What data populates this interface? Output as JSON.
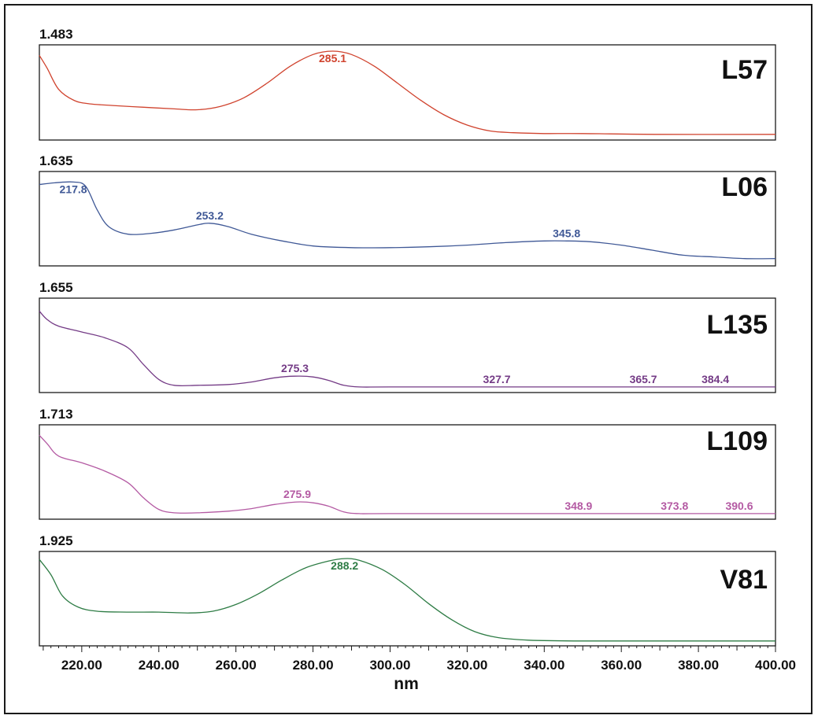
{
  "chart_data": {
    "type": "line",
    "xlabel": "nm",
    "xlim": [
      209,
      400
    ],
    "x_ticks": [
      "220.00",
      "240.00",
      "260.00",
      "280.00",
      "300.00",
      "320.00",
      "340.00",
      "360.00",
      "380.00",
      "400.00"
    ],
    "panels": [
      {
        "name": "L57",
        "ymax_label": "1.483",
        "color": "#d0432e",
        "peaks": [
          {
            "x": 285.1,
            "label": "285.1"
          }
        ],
        "points": [
          [
            209,
            0.95
          ],
          [
            211,
            0.8
          ],
          [
            214,
            0.55
          ],
          [
            218,
            0.42
          ],
          [
            222,
            0.38
          ],
          [
            228,
            0.36
          ],
          [
            236,
            0.34
          ],
          [
            244,
            0.32
          ],
          [
            250,
            0.31
          ],
          [
            256,
            0.35
          ],
          [
            262,
            0.45
          ],
          [
            268,
            0.62
          ],
          [
            274,
            0.82
          ],
          [
            280,
            0.96
          ],
          [
            285.1,
            1.0
          ],
          [
            290,
            0.96
          ],
          [
            296,
            0.82
          ],
          [
            302,
            0.62
          ],
          [
            308,
            0.42
          ],
          [
            314,
            0.25
          ],
          [
            320,
            0.13
          ],
          [
            326,
            0.06
          ],
          [
            332,
            0.04
          ],
          [
            340,
            0.03
          ],
          [
            350,
            0.03
          ],
          [
            370,
            0.02
          ],
          [
            400,
            0.02
          ]
        ]
      },
      {
        "name": "L06",
        "ymax_label": "1.635",
        "color": "#3f5896",
        "peaks": [
          {
            "x": 217.8,
            "label": "217.8"
          },
          {
            "x": 253.2,
            "label": "253.2"
          },
          {
            "x": 345.8,
            "label": "345.8"
          }
        ],
        "points": [
          [
            209,
            0.92
          ],
          [
            213,
            0.94
          ],
          [
            217.8,
            0.95
          ],
          [
            221,
            0.9
          ],
          [
            224,
            0.62
          ],
          [
            227,
            0.42
          ],
          [
            232,
            0.33
          ],
          [
            238,
            0.34
          ],
          [
            244,
            0.38
          ],
          [
            250,
            0.44
          ],
          [
            253.2,
            0.46
          ],
          [
            258,
            0.42
          ],
          [
            264,
            0.33
          ],
          [
            272,
            0.25
          ],
          [
            280,
            0.19
          ],
          [
            290,
            0.17
          ],
          [
            300,
            0.17
          ],
          [
            310,
            0.18
          ],
          [
            320,
            0.2
          ],
          [
            330,
            0.23
          ],
          [
            340,
            0.25
          ],
          [
            345.8,
            0.25
          ],
          [
            352,
            0.24
          ],
          [
            360,
            0.2
          ],
          [
            368,
            0.14
          ],
          [
            376,
            0.08
          ],
          [
            384,
            0.06
          ],
          [
            392,
            0.04
          ],
          [
            400,
            0.04
          ]
        ]
      },
      {
        "name": "L135",
        "ymax_label": "1.655",
        "color": "#743b86",
        "peaks": [
          {
            "x": 275.3,
            "label": "275.3"
          },
          {
            "x": 327.7,
            "label": "327.7"
          },
          {
            "x": 365.7,
            "label": "365.7"
          },
          {
            "x": 384.4,
            "label": "384.4"
          }
        ],
        "points": [
          [
            209,
            0.92
          ],
          [
            211,
            0.82
          ],
          [
            214,
            0.74
          ],
          [
            220,
            0.67
          ],
          [
            226,
            0.6
          ],
          [
            232,
            0.48
          ],
          [
            236,
            0.28
          ],
          [
            240,
            0.1
          ],
          [
            244,
            0.03
          ],
          [
            250,
            0.03
          ],
          [
            258,
            0.04
          ],
          [
            264,
            0.07
          ],
          [
            270,
            0.12
          ],
          [
            275.3,
            0.14
          ],
          [
            280,
            0.13
          ],
          [
            284,
            0.09
          ],
          [
            288,
            0.03
          ],
          [
            292,
            0.01
          ],
          [
            300,
            0.01
          ],
          [
            327.7,
            0.01
          ],
          [
            365.7,
            0.01
          ],
          [
            384.4,
            0.01
          ],
          [
            400,
            0.01
          ]
        ]
      },
      {
        "name": "L109",
        "ymax_label": "1.713",
        "color": "#b45aa3",
        "peaks": [
          {
            "x": 275.9,
            "label": "275.9"
          },
          {
            "x": 348.9,
            "label": "348.9"
          },
          {
            "x": 373.8,
            "label": "373.8"
          },
          {
            "x": 390.6,
            "label": "390.6"
          }
        ],
        "points": [
          [
            209,
            0.95
          ],
          [
            211,
            0.85
          ],
          [
            214,
            0.7
          ],
          [
            220,
            0.62
          ],
          [
            226,
            0.52
          ],
          [
            232,
            0.38
          ],
          [
            236,
            0.2
          ],
          [
            240,
            0.06
          ],
          [
            244,
            0.02
          ],
          [
            250,
            0.02
          ],
          [
            258,
            0.04
          ],
          [
            264,
            0.07
          ],
          [
            270,
            0.12
          ],
          [
            275.9,
            0.15
          ],
          [
            280,
            0.14
          ],
          [
            284,
            0.1
          ],
          [
            288,
            0.03
          ],
          [
            292,
            0.01
          ],
          [
            300,
            0.01
          ],
          [
            348.9,
            0.01
          ],
          [
            373.8,
            0.01
          ],
          [
            390.6,
            0.01
          ],
          [
            400,
            0.01
          ]
        ]
      },
      {
        "name": "V81",
        "ymax_label": "1.925",
        "color": "#2e7c45",
        "peaks": [
          {
            "x": 288.2,
            "label": "288.2"
          }
        ],
        "points": [
          [
            209,
            0.98
          ],
          [
            212,
            0.8
          ],
          [
            215,
            0.55
          ],
          [
            219,
            0.42
          ],
          [
            224,
            0.37
          ],
          [
            232,
            0.36
          ],
          [
            240,
            0.36
          ],
          [
            248,
            0.35
          ],
          [
            254,
            0.37
          ],
          [
            260,
            0.45
          ],
          [
            266,
            0.58
          ],
          [
            272,
            0.74
          ],
          [
            278,
            0.88
          ],
          [
            284,
            0.96
          ],
          [
            288.2,
            0.99
          ],
          [
            292,
            0.97
          ],
          [
            298,
            0.86
          ],
          [
            304,
            0.68
          ],
          [
            310,
            0.46
          ],
          [
            316,
            0.27
          ],
          [
            322,
            0.13
          ],
          [
            328,
            0.06
          ],
          [
            336,
            0.03
          ],
          [
            350,
            0.02
          ],
          [
            370,
            0.02
          ],
          [
            400,
            0.02
          ]
        ]
      }
    ]
  }
}
